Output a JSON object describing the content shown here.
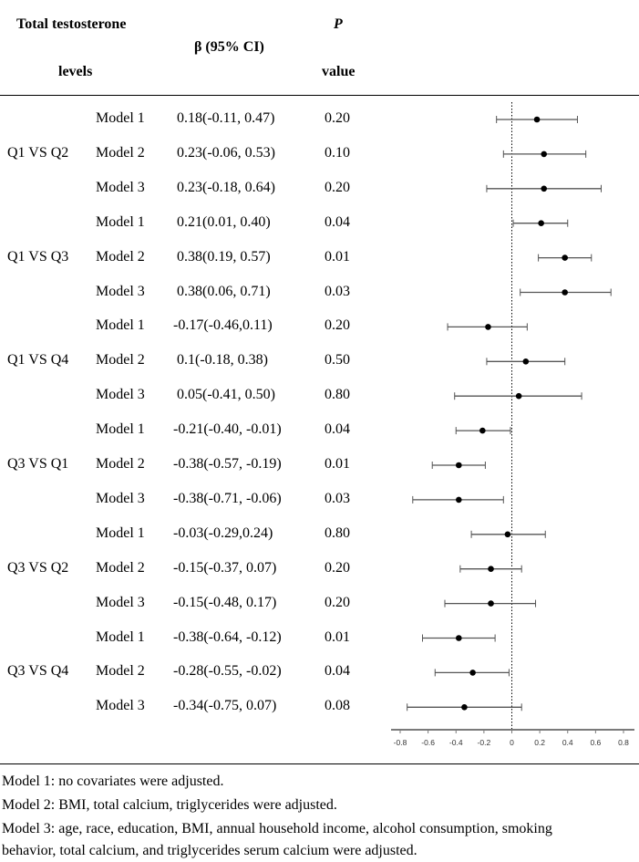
{
  "header": {
    "col1_line1": "Total testosterone",
    "col1_line2": "levels",
    "col2": "β (95% CI)",
    "col3_line1": "P",
    "col3_line2": "value"
  },
  "groups": [
    {
      "label": "Q1 VS Q2",
      "rows": [
        {
          "model": "Model 1",
          "ci": "0.18(-0.11, 0.47)",
          "p": "0.20"
        },
        {
          "model": "Model 2",
          "ci": "0.23(-0.06, 0.53)",
          "p": "0.10"
        },
        {
          "model": "Model 3",
          "ci": "0.23(-0.18, 0.64)",
          "p": "0.20"
        }
      ]
    },
    {
      "label": "Q1 VS Q3",
      "rows": [
        {
          "model": "Model 1",
          "ci": "0.21(0.01, 0.40)",
          "p": "0.04"
        },
        {
          "model": "Model 2",
          "ci": "0.38(0.19, 0.57)",
          "p": "0.01"
        },
        {
          "model": "Model 3",
          "ci": "0.38(0.06, 0.71)",
          "p": "0.03"
        }
      ]
    },
    {
      "label": "Q1 VS Q4",
      "rows": [
        {
          "model": "Model 1",
          "ci": "-0.17(-0.46,0.11)",
          "p": "0.20"
        },
        {
          "model": "Model 2",
          "ci": "0.1(-0.18, 0.38)",
          "p": "0.50"
        },
        {
          "model": "Model 3",
          "ci": "0.05(-0.41, 0.50)",
          "p": "0.80"
        }
      ]
    },
    {
      "label": "Q3 VS Q1",
      "rows": [
        {
          "model": "Model 1",
          "ci": "-0.21(-0.40, -0.01)",
          "p": "0.04"
        },
        {
          "model": "Model 2",
          "ci": "-0.38(-0.57, -0.19)",
          "p": "0.01"
        },
        {
          "model": "Model 3",
          "ci": "-0.38(-0.71, -0.06)",
          "p": "0.03"
        }
      ]
    },
    {
      "label": "Q3 VS Q2",
      "rows": [
        {
          "model": "Model 1",
          "ci": "-0.03(-0.29,0.24)",
          "p": "0.80"
        },
        {
          "model": "Model 2",
          "ci": "-0.15(-0.37, 0.07)",
          "p": "0.20"
        },
        {
          "model": "Model 3",
          "ci": "-0.15(-0.48, 0.17)",
          "p": "0.20"
        }
      ]
    },
    {
      "label": "Q3 VS Q4",
      "rows": [
        {
          "model": "Model 1",
          "ci": "-0.38(-0.64, -0.12)",
          "p": "0.01"
        },
        {
          "model": "Model 2",
          "ci": "-0.28(-0.55, -0.02)",
          "p": "0.04"
        },
        {
          "model": "Model 3",
          "ci": "-0.34(-0.75, 0.07)",
          "p": "0.08"
        }
      ]
    }
  ],
  "chart_data": {
    "type": "forest",
    "xlim": [
      -0.8,
      0.8
    ],
    "ticks": [
      "-0.8",
      "-0.6",
      "-0.4",
      "-0.2",
      "0",
      "0.2",
      "0.4",
      "0.6",
      "0.8"
    ],
    "reference_line": 0,
    "points": [
      {
        "est": 0.18,
        "lo": -0.11,
        "hi": 0.47
      },
      {
        "est": 0.23,
        "lo": -0.06,
        "hi": 0.53
      },
      {
        "est": 0.23,
        "lo": -0.18,
        "hi": 0.64
      },
      {
        "est": 0.21,
        "lo": 0.01,
        "hi": 0.4
      },
      {
        "est": 0.38,
        "lo": 0.19,
        "hi": 0.57
      },
      {
        "est": 0.38,
        "lo": 0.06,
        "hi": 0.71
      },
      {
        "est": -0.17,
        "lo": -0.46,
        "hi": 0.11
      },
      {
        "est": 0.1,
        "lo": -0.18,
        "hi": 0.38
      },
      {
        "est": 0.05,
        "lo": -0.41,
        "hi": 0.5
      },
      {
        "est": -0.21,
        "lo": -0.4,
        "hi": -0.01
      },
      {
        "est": -0.38,
        "lo": -0.57,
        "hi": -0.19
      },
      {
        "est": -0.38,
        "lo": -0.71,
        "hi": -0.06
      },
      {
        "est": -0.03,
        "lo": -0.29,
        "hi": 0.24
      },
      {
        "est": -0.15,
        "lo": -0.37,
        "hi": 0.07
      },
      {
        "est": -0.15,
        "lo": -0.48,
        "hi": 0.17
      },
      {
        "est": -0.38,
        "lo": -0.64,
        "hi": -0.12
      },
      {
        "est": -0.28,
        "lo": -0.55,
        "hi": -0.02
      },
      {
        "est": -0.34,
        "lo": -0.75,
        "hi": 0.07
      }
    ]
  },
  "footnotes": [
    "Model 1: no covariates were adjusted.",
    "Model 2: BMI, total calcium, triglycerides were adjusted.",
    "Model 3: age, race, education, BMI, annual household income, alcohol consumption, smoking",
    "behavior, total calcium, and triglycerides serum calcium were adjusted."
  ]
}
